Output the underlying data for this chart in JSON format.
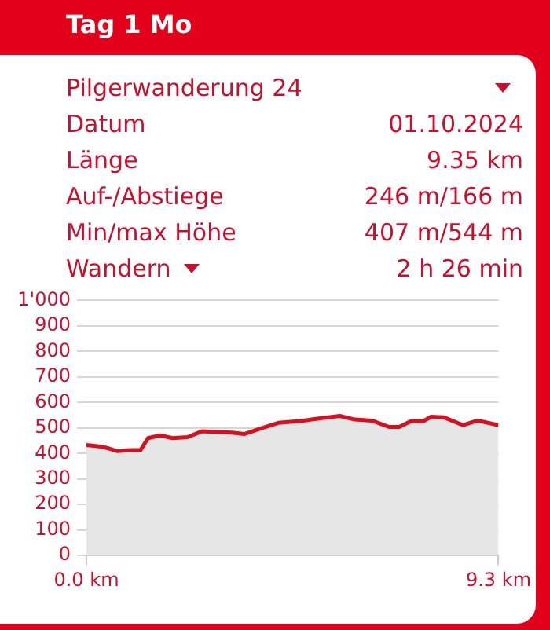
{
  "chart_data": [
    {
      "type": "other",
      "title": "Tag 1 Mo",
      "annotations": [
        "Pilgerwanderung 24",
        "Datum",
        "01.10.2024",
        "Länge",
        "9.35 km",
        "Auf-/Abstiege",
        "246 m/166 m",
        "Min/max Höhe",
        "407 m/544 m",
        "Wandern",
        "2 h 26 min"
      ]
    },
    {
      "type": "area",
      "x": [
        0,
        0.33,
        0.5,
        0.7,
        1.0,
        1.22,
        1.39,
        1.67,
        1.94,
        2.28,
        2.61,
        2.94,
        3.28,
        3.56,
        3.94,
        4.33,
        4.83,
        5.28,
        5.72,
        6.06,
        6.44,
        6.83,
        7.06,
        7.33,
        7.61,
        7.78,
        8.06,
        8.5,
        8.83,
        9.3
      ],
      "series": [
        {
          "color": "#d7101f",
          "values": [
            433,
            427,
            420,
            409,
            413,
            413,
            460,
            471,
            460,
            464,
            487,
            484,
            482,
            476,
            498,
            520,
            527,
            538,
            547,
            533,
            529,
            504,
            504,
            527,
            527,
            544,
            542,
            511,
            529,
            511
          ]
        }
      ],
      "xlim": [
        0,
        9.3
      ],
      "ylim": [
        0,
        1000
      ],
      "xticks": [
        {
          "value": 0,
          "label": "0.0 km"
        },
        {
          "value": 9.3,
          "label": "9.3 km"
        }
      ],
      "yticks": [
        0,
        100,
        200,
        300,
        400,
        500,
        600,
        700,
        800,
        900,
        {
          "value": 1000,
          "label": "1'000"
        }
      ],
      "grid": "y"
    }
  ]
}
